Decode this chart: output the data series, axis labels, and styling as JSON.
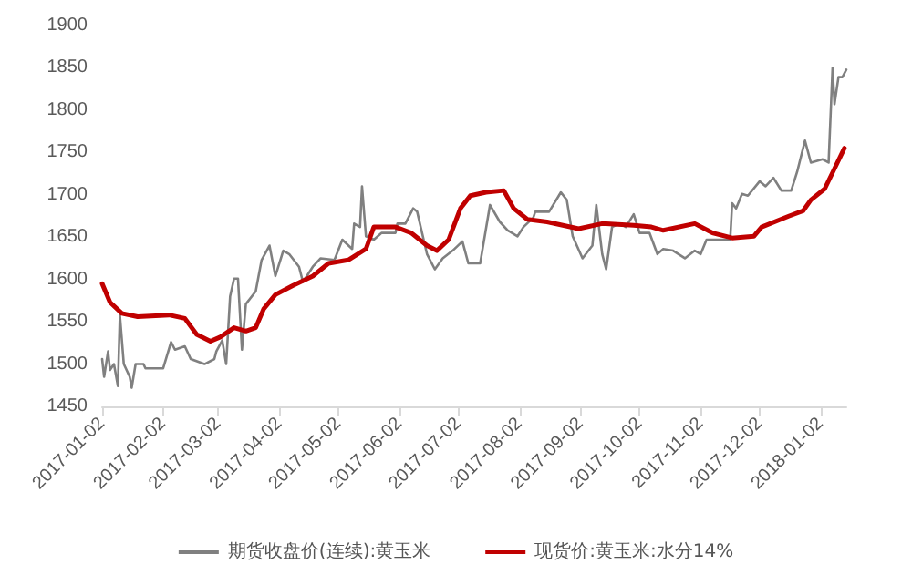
{
  "chart_data": {
    "type": "line",
    "xlim": [
      "2017-01-02",
      "2018-01-15"
    ],
    "xticks": [
      "2017-01-02",
      "2017-02-02",
      "2017-03-02",
      "2017-04-02",
      "2017-05-02",
      "2017-06-02",
      "2017-07-02",
      "2017-08-02",
      "2017-09-02",
      "2017-10-02",
      "2017-11-02",
      "2017-12-02",
      "2018-01-02"
    ],
    "ylim": [
      1450,
      1900
    ],
    "yticks": [
      1450,
      1500,
      1550,
      1600,
      1650,
      1700,
      1750,
      1800,
      1850,
      1900
    ],
    "grid": false,
    "legend": "bottom",
    "marker": "none",
    "line_style": "solid",
    "series": [
      {
        "name": "期货收盘价(连续):黄玉米",
        "color": "#808080",
        "x": [
          "2017-01-02",
          "2017-01-03",
          "2017-01-05",
          "2017-01-06",
          "2017-01-08",
          "2017-01-10",
          "2017-01-11",
          "2017-01-13",
          "2017-01-16",
          "2017-01-17",
          "2017-01-19",
          "2017-01-23",
          "2017-01-24",
          "2017-02-02",
          "2017-02-06",
          "2017-02-08",
          "2017-02-13",
          "2017-02-16",
          "2017-02-23",
          "2017-02-28",
          "2017-03-01",
          "2017-03-04",
          "2017-03-06",
          "2017-03-08",
          "2017-03-10",
          "2017-03-12",
          "2017-03-14",
          "2017-03-16",
          "2017-03-21",
          "2017-03-24",
          "2017-03-28",
          "2017-03-31",
          "2017-04-04",
          "2017-04-07",
          "2017-04-12",
          "2017-04-14",
          "2017-04-19",
          "2017-04-23",
          "2017-04-30",
          "2017-05-04",
          "2017-05-09",
          "2017-05-10",
          "2017-05-13",
          "2017-05-14",
          "2017-05-16",
          "2017-05-20",
          "2017-05-24",
          "2017-05-31",
          "2017-06-01",
          "2017-06-05",
          "2017-06-09",
          "2017-06-11",
          "2017-06-16",
          "2017-06-20",
          "2017-06-24",
          "2017-06-29",
          "2017-07-04",
          "2017-07-07",
          "2017-07-13",
          "2017-07-18",
          "2017-07-23",
          "2017-07-27",
          "2017-08-01",
          "2017-08-04",
          "2017-08-09",
          "2017-08-10",
          "2017-08-17",
          "2017-08-23",
          "2017-08-26",
          "2017-08-29",
          "2017-09-03",
          "2017-09-08",
          "2017-09-10",
          "2017-09-13",
          "2017-09-15",
          "2017-09-18",
          "2017-09-22",
          "2017-09-25",
          "2017-09-29",
          "2017-10-02",
          "2017-10-07",
          "2017-10-11",
          "2017-10-14",
          "2017-10-19",
          "2017-10-25",
          "2017-10-30",
          "2017-11-02",
          "2017-11-05",
          "2017-11-17",
          "2017-11-18",
          "2017-11-20",
          "2017-11-23",
          "2017-11-26",
          "2017-12-02",
          "2017-12-05",
          "2017-12-09",
          "2017-12-13",
          "2017-12-18",
          "2017-12-21",
          "2017-12-25",
          "2017-12-28",
          "2018-01-03",
          "2018-01-06",
          "2018-01-08",
          "2018-01-09",
          "2018-01-11",
          "2018-01-13",
          "2018-01-15"
        ],
        "values": [
          1506,
          1485,
          1515,
          1493,
          1500,
          1474,
          1558,
          1500,
          1485,
          1472,
          1500,
          1500,
          1495,
          1495,
          1526,
          1517,
          1521,
          1506,
          1500,
          1506,
          1515,
          1528,
          1500,
          1580,
          1601,
          1601,
          1517,
          1571,
          1586,
          1623,
          1640,
          1604,
          1634,
          1630,
          1615,
          1597,
          1615,
          1625,
          1623,
          1647,
          1636,
          1666,
          1662,
          1710,
          1651,
          1647,
          1655,
          1655,
          1666,
          1666,
          1684,
          1680,
          1630,
          1612,
          1625,
          1634,
          1645,
          1619,
          1619,
          1688,
          1668,
          1658,
          1651,
          1662,
          1673,
          1680,
          1680,
          1703,
          1694,
          1651,
          1625,
          1640,
          1688,
          1630,
          1612,
          1662,
          1666,
          1662,
          1677,
          1655,
          1655,
          1630,
          1636,
          1634,
          1625,
          1634,
          1630,
          1647,
          1647,
          1690,
          1684,
          1701,
          1699,
          1716,
          1710,
          1720,
          1705,
          1705,
          1727,
          1764,
          1738,
          1742,
          1738,
          1850,
          1807,
          1839,
          1839,
          1848
        ]
      },
      {
        "name": "现货价:黄玉米:水分14%",
        "color": "#c00000",
        "x": [
          "2017-01-02",
          "2017-01-06",
          "2017-01-12",
          "2017-01-20",
          "2017-02-05",
          "2017-02-13",
          "2017-02-19",
          "2017-02-26",
          "2017-03-03",
          "2017-03-10",
          "2017-03-16",
          "2017-03-21",
          "2017-03-25",
          "2017-03-31",
          "2017-04-09",
          "2017-04-19",
          "2017-04-27",
          "2017-05-07",
          "2017-05-16",
          "2017-05-20",
          "2017-05-31",
          "2017-06-08",
          "2017-06-16",
          "2017-06-21",
          "2017-06-27",
          "2017-07-03",
          "2017-07-08",
          "2017-07-16",
          "2017-07-25",
          "2017-07-30",
          "2017-08-06",
          "2017-08-16",
          "2017-09-01",
          "2017-09-13",
          "2017-09-29",
          "2017-10-08",
          "2017-10-14",
          "2017-10-30",
          "2017-11-08",
          "2017-11-18",
          "2017-11-29",
          "2017-12-03",
          "2017-12-17",
          "2017-12-24",
          "2017-12-28",
          "2018-01-04",
          "2018-01-09",
          "2018-01-14"
        ],
        "values": [
          1595,
          1573,
          1560,
          1556,
          1558,
          1554,
          1535,
          1527,
          1532,
          1543,
          1539,
          1543,
          1565,
          1582,
          1593,
          1604,
          1619,
          1623,
          1636,
          1662,
          1662,
          1655,
          1640,
          1634,
          1647,
          1684,
          1699,
          1703,
          1705,
          1684,
          1671,
          1668,
          1660,
          1666,
          1664,
          1662,
          1658,
          1666,
          1655,
          1649,
          1651,
          1662,
          1675,
          1681,
          1694,
          1707,
          1731,
          1755
        ]
      }
    ]
  }
}
